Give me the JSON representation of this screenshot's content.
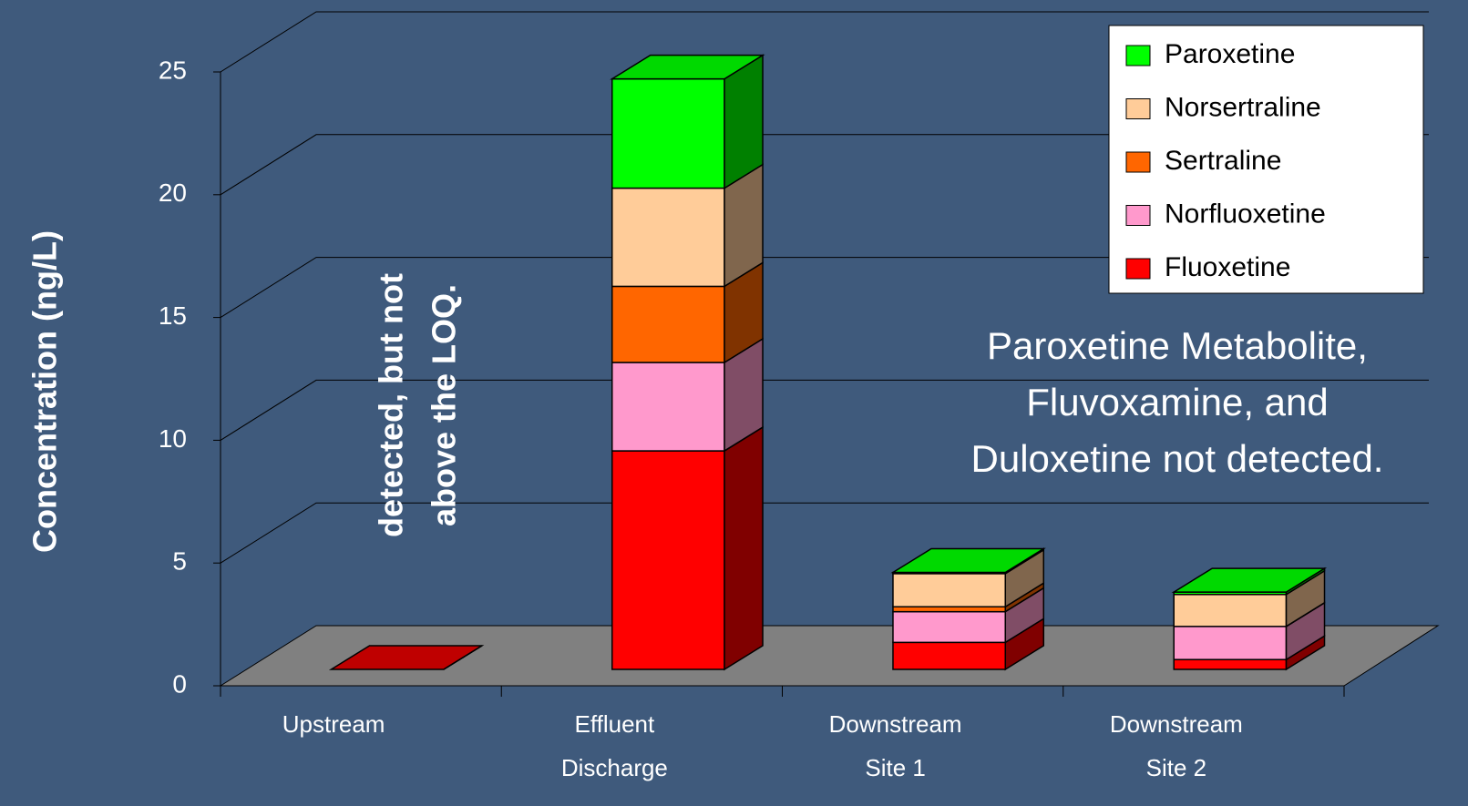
{
  "chart_data": {
    "type": "bar3d_stacked",
    "y_label": "Concentration (ng/L)",
    "categories": [
      [
        "Upstream"
      ],
      [
        "Effluent",
        "Discharge"
      ],
      [
        "Downstream",
        "Site 1"
      ],
      [
        "Downstream",
        "Site 2"
      ]
    ],
    "series": [
      {
        "name": "Fluoxetine",
        "color": "#ff0000",
        "values": [
          0,
          8.9,
          1.1,
          0.4
        ]
      },
      {
        "name": "Norfluoxetine",
        "color": "#ff99cc",
        "values": [
          0,
          3.6,
          1.25,
          1.35
        ]
      },
      {
        "name": "Sertraline",
        "color": "#ff6600",
        "values": [
          0,
          3.1,
          0.2,
          0
        ]
      },
      {
        "name": "Norsertraline",
        "color": "#ffcc99",
        "values": [
          0,
          4.0,
          1.35,
          1.3
        ]
      },
      {
        "name": "Paroxetine",
        "color": "#00ff00",
        "values": [
          0,
          4.45,
          0.05,
          0.1
        ]
      }
    ],
    "ylim": [
      0,
      25
    ],
    "yticks": [
      0,
      5,
      10,
      15,
      20,
      25
    ],
    "grid": true,
    "annotations": [
      [
        "detected, but not",
        "above the LOQ."
      ],
      [
        "Paroxetine Metabolite,",
        "Fluvoxamine, and",
        "Duloxetine not detected."
      ]
    ]
  }
}
